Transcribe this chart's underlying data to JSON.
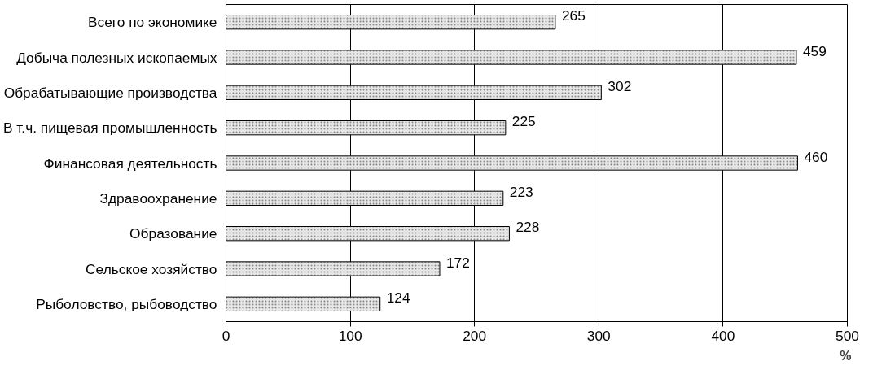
{
  "chart_data": {
    "type": "bar",
    "orientation": "horizontal",
    "xlabel": "%",
    "categories": [
      "Всего по экономике",
      "Добыча полезных ископаемых",
      "Обрабатывающие производства",
      "В т.ч. пищевая промышленность",
      "Финансовая деятельность",
      "Здравоохранение",
      "Образование",
      "Сельское хозяйство",
      "Рыболовство, рыбоводство"
    ],
    "values": [
      265,
      459,
      302,
      225,
      460,
      223,
      228,
      172,
      124
    ],
    "color": "#e6e6e6",
    "xlim": [
      0,
      500
    ],
    "xticks": [
      0,
      100,
      200,
      300,
      400,
      500
    ],
    "grid": "x",
    "data_labels": true
  }
}
